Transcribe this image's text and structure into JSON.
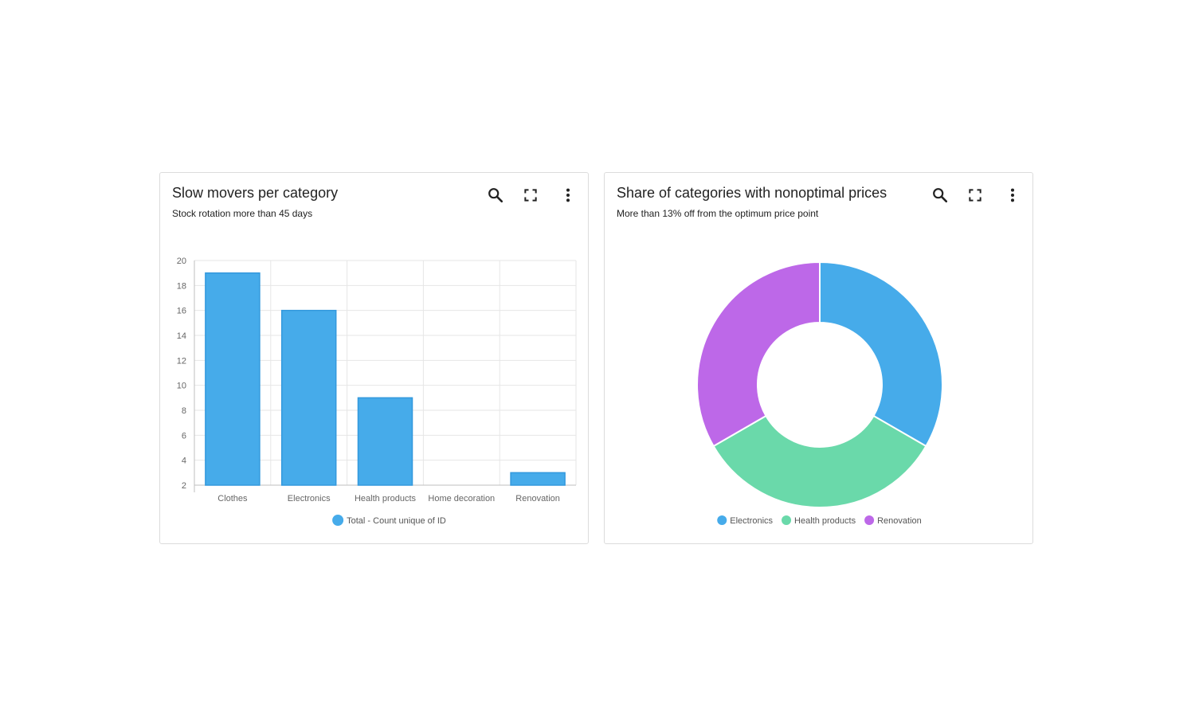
{
  "colors": {
    "blue": "#46abea",
    "blue_stroke": "#3399dd",
    "green": "#6ad9aa",
    "purple": "#bd68e8",
    "grid": "#e6e6e6",
    "axis": "#bfbfbf"
  },
  "icons": [
    "search-icon",
    "expand-icon",
    "more-vert-icon"
  ],
  "left_card": {
    "title": "Slow movers per category",
    "subtitle": "Stock rotation more than 45 days"
  },
  "right_card": {
    "title": "Share of categories with nonoptimal prices",
    "subtitle": "More than 13% off from the optimum price point"
  },
  "chart_data": [
    {
      "type": "bar",
      "categories": [
        "Clothes",
        "Electronics",
        "Health products",
        "Home decoration",
        "Renovation"
      ],
      "series": [
        {
          "name": "Total - Count unique of ID",
          "values": [
            19,
            16,
            9,
            2,
            3
          ]
        }
      ],
      "ylim": [
        2,
        20
      ],
      "yticks": [
        2,
        4,
        6,
        8,
        10,
        12,
        14,
        16,
        18,
        20
      ],
      "grid": true,
      "legend": "bottom-center"
    },
    {
      "type": "pie",
      "variant": "donut",
      "labels": [
        "Electronics",
        "Health products",
        "Renovation"
      ],
      "values": [
        1,
        1,
        1
      ],
      "grid": false,
      "legend": "bottom-center"
    }
  ]
}
